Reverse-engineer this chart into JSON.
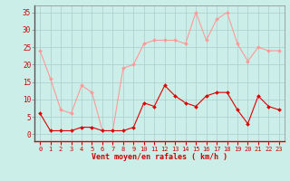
{
  "hours": [
    0,
    1,
    2,
    3,
    4,
    5,
    6,
    7,
    8,
    9,
    10,
    11,
    12,
    13,
    14,
    15,
    16,
    17,
    18,
    19,
    20,
    21,
    22,
    23
  ],
  "wind_avg": [
    6,
    1,
    1,
    1,
    2,
    2,
    1,
    1,
    1,
    2,
    9,
    8,
    14,
    11,
    9,
    8,
    11,
    12,
    12,
    7,
    3,
    11,
    8,
    7
  ],
  "wind_gust": [
    24,
    16,
    7,
    6,
    14,
    12,
    1,
    1,
    19,
    20,
    26,
    27,
    27,
    27,
    26,
    35,
    27,
    33,
    35,
    26,
    21,
    25,
    24,
    24
  ],
  "color_avg": "#dd0000",
  "color_gust": "#ff9999",
  "bg_color": "#cceee8",
  "grid_color": "#aacccc",
  "xlabel": "Vent moyen/en rafales ( km/h )",
  "xlabel_color": "#cc0000",
  "ytick_labels": [
    "0",
    "5",
    "10",
    "15",
    "20",
    "25",
    "30",
    "35"
  ],
  "ytick_values": [
    0,
    5,
    10,
    15,
    20,
    25,
    30,
    35
  ],
  "ylim": [
    -2,
    37
  ],
  "xlim": [
    -0.5,
    23.5
  ],
  "tick_color": "#cc0000",
  "spine_color": "#888888"
}
